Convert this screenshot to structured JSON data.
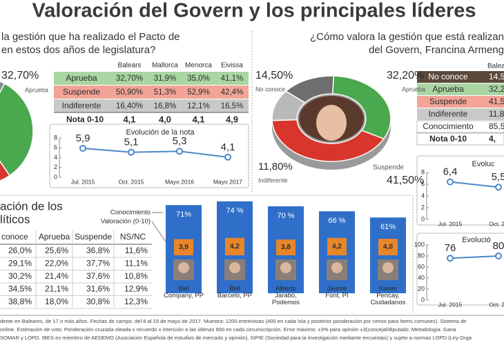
{
  "title": "Valoración del Govern y los principales líderes",
  "pacto": {
    "question": [
      "la gestión que ha realizado el Pacto de",
      "en estos dos años de legislatura?"
    ],
    "table": {
      "header": [
        "Balears",
        "Mallorca",
        "Menorca",
        "Eivissa"
      ],
      "rows": [
        [
          "Aprueba",
          "32,70%",
          "31,9%",
          "35,0%",
          "41,1%"
        ],
        [
          "Suspende",
          "50,90%",
          "51,3%",
          "52,9%",
          "42,4%"
        ],
        [
          "Indiferente",
          "16,40%",
          "16,8%",
          "12,1%",
          "16,5%"
        ],
        [
          "Nota 0-10",
          "4,1",
          "4,0",
          "4,1",
          "4,9"
        ]
      ]
    }
  },
  "president": {
    "question": [
      "¿Cómo valora la gestión que está realizan",
      "del Govern, Francina Armeng"
    ],
    "table": {
      "header": [
        "Balea"
      ],
      "rows": [
        [
          "No conoce",
          "14,5"
        ],
        [
          "Aprueba",
          "32,2"
        ],
        [
          "Suspende",
          "41,5"
        ],
        [
          "Indiferente",
          "11,8"
        ],
        [
          "Conocimiento",
          "85,5"
        ],
        [
          "Nota 0-10",
          "4,"
        ]
      ]
    }
  },
  "leaders": {
    "title": [
      "ación de los",
      "líticos"
    ],
    "table": {
      "header": [
        "conoce",
        "Aprueba",
        "Suspende",
        "NS/NC"
      ],
      "rows": [
        [
          "26,0%",
          "25,6%",
          "36,8%",
          "11,6%"
        ],
        [
          "29,1%",
          "22,0%",
          "37,7%",
          "11,1%"
        ],
        [
          "30,2%",
          "21,4%",
          "37,6%",
          "10,8%"
        ],
        [
          "34,5%",
          "21,1%",
          "31,6%",
          "12,9%"
        ],
        [
          "38,8%",
          "18,0%",
          "30,8%",
          "12,3%"
        ]
      ]
    }
  },
  "footnote": [
    "dente en Baleares, de 17 o más años. Fechas de campo: del 8 al 19 de mayo de 2017. Muestra: 1200 entrevistas (400 en cada Isla y posterior ponderación por censo para ítems comunes). Sistema de",
    "online. Estimación de voto: Ponderación cruzada oleada x recuerdo x intención a las últimas 900 en cada circunscripción. Error máximo: ±3% para opinión ±3(concejal/diputado. Metodología: Gana",
    "SOMAR y LOPD. IBES es miembro de AEDEMO (Asociación Española de estudios de mercado y opinión). SIPIE (Sociedad para la investigación mediante encuestas) y sujeto a normas LOPD (Ley Orga"
  ],
  "chart_data": [
    {
      "type": "pie",
      "categories": [
        "Aprueba",
        null,
        null
      ],
      "values": [
        32.7,
        50.9,
        16.4
      ],
      "value_labels": [
        "32,70%",
        null,
        null
      ],
      "colors": [
        "#4aa84f",
        "#d8362c",
        "#8c8c8c"
      ]
    },
    {
      "type": "line",
      "title": "Evolución de la nota",
      "categories": [
        "Jul. 2015",
        "Oct. 2015",
        "Mayo 2016",
        "Mayo 2017"
      ],
      "values": [
        5.9,
        5.1,
        5.3,
        4.1
      ],
      "value_labels": [
        "5,9",
        "5,1",
        "5,3",
        "4,1"
      ],
      "color": "#4a86c8",
      "ylim": [
        0,
        8
      ],
      "yticks": [
        0,
        2,
        4,
        6,
        8
      ],
      "grid": false
    },
    {
      "type": "pie",
      "categories": [
        "No conoce",
        "Aprueba",
        "Suspende",
        "Indiferente"
      ],
      "values": [
        14.5,
        32.2,
        41.5,
        11.8
      ],
      "value_labels": [
        "14,50%",
        "32,20%",
        "41,50%",
        "11,80%"
      ],
      "colors": [
        "#6f6f6f",
        "#4aa84f",
        "#d8362c",
        "#b9b9b9"
      ]
    },
    {
      "type": "line",
      "title": "Evoluc",
      "categories": [
        "Jul. 2015",
        "Oct. 20"
      ],
      "values": [
        6.4,
        5.5
      ],
      "value_labels": [
        "6,4",
        "5,5"
      ],
      "color": "#4a86c8",
      "ylim": [
        0,
        8
      ],
      "yticks": [
        0,
        2,
        4,
        6,
        8
      ],
      "grid": false
    },
    {
      "type": "line",
      "title": "Evolució",
      "categories": [
        "Jul. 2015",
        "Oct. 20"
      ],
      "values": [
        76,
        80
      ],
      "color": "#4a86c8",
      "ylim": [
        0,
        100
      ],
      "yticks": [
        0,
        20,
        40,
        60,
        80,
        100
      ],
      "grid": false
    },
    {
      "type": "bar",
      "categories": [
        "Biel\nCompany, PP",
        "Biel\nBarceló, PP",
        "Alberto\nJarabo,\nPodemos",
        "Jaume\nFont, PI",
        "Xavier\nPericay,\nCiudadanos"
      ],
      "series": [
        {
          "name": "Conocimiento",
          "color": "#2f6fc9",
          "values": [
            71,
            74,
            70,
            66,
            61
          ],
          "value_labels": [
            "71%",
            "74 %",
            "70 %",
            "66 %",
            "61%"
          ]
        },
        {
          "name": "Valoración (0-10)",
          "color": "#e8862a",
          "values": [
            3.9,
            4.2,
            3.8,
            4.2,
            4.0
          ],
          "value_labels": [
            "3,9",
            "4,2",
            "3,8",
            "4,2",
            "4,0"
          ]
        }
      ],
      "ylim": [
        0,
        100
      ]
    }
  ]
}
